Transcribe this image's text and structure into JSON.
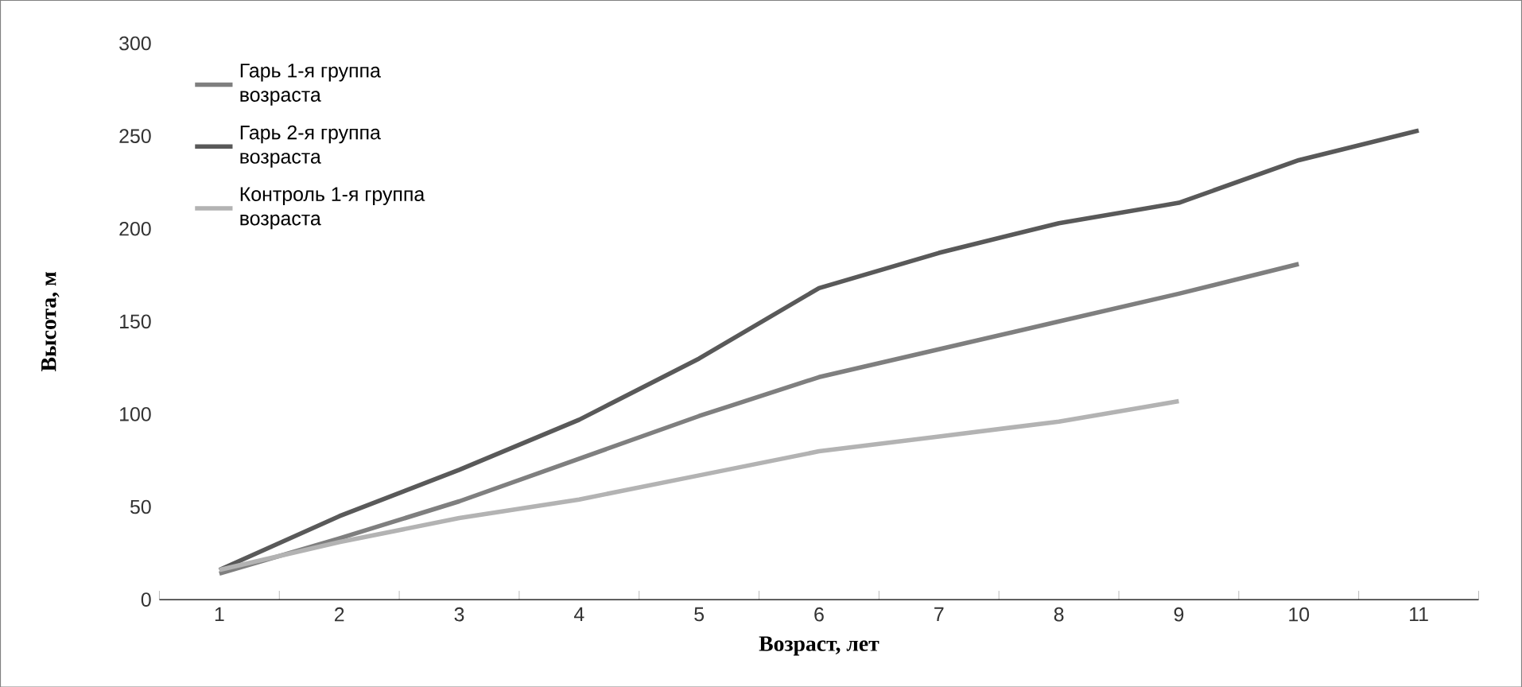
{
  "chart_data": {
    "type": "line",
    "xlabel": "Возраст, лет",
    "ylabel": "Высота, м",
    "categories": [
      "1",
      "2",
      "3",
      "4",
      "5",
      "6",
      "7",
      "8",
      "9",
      "10",
      "11"
    ],
    "series": [
      {
        "name": "Гарь 1-я группа возраста",
        "color": "#7f7f7f",
        "values": [
          14,
          33,
          53,
          76,
          99,
          120,
          135,
          150,
          165,
          181,
          null
        ]
      },
      {
        "name": "Гарь 2-я группа возраста",
        "color": "#595959",
        "values": [
          16,
          45,
          70,
          97,
          130,
          168,
          187,
          203,
          214,
          237,
          253
        ]
      },
      {
        "name": "Контроль 1-я группа возраста",
        "color": "#b3b3b3",
        "values": [
          16,
          31,
          44,
          54,
          67,
          80,
          88,
          96,
          107,
          null,
          null
        ]
      }
    ],
    "ylim": [
      0,
      300
    ],
    "yticks": [
      0,
      50,
      100,
      150,
      200,
      250,
      300
    ],
    "grid": false,
    "legend": "top left",
    "marker": "none",
    "line_style": "solid"
  }
}
